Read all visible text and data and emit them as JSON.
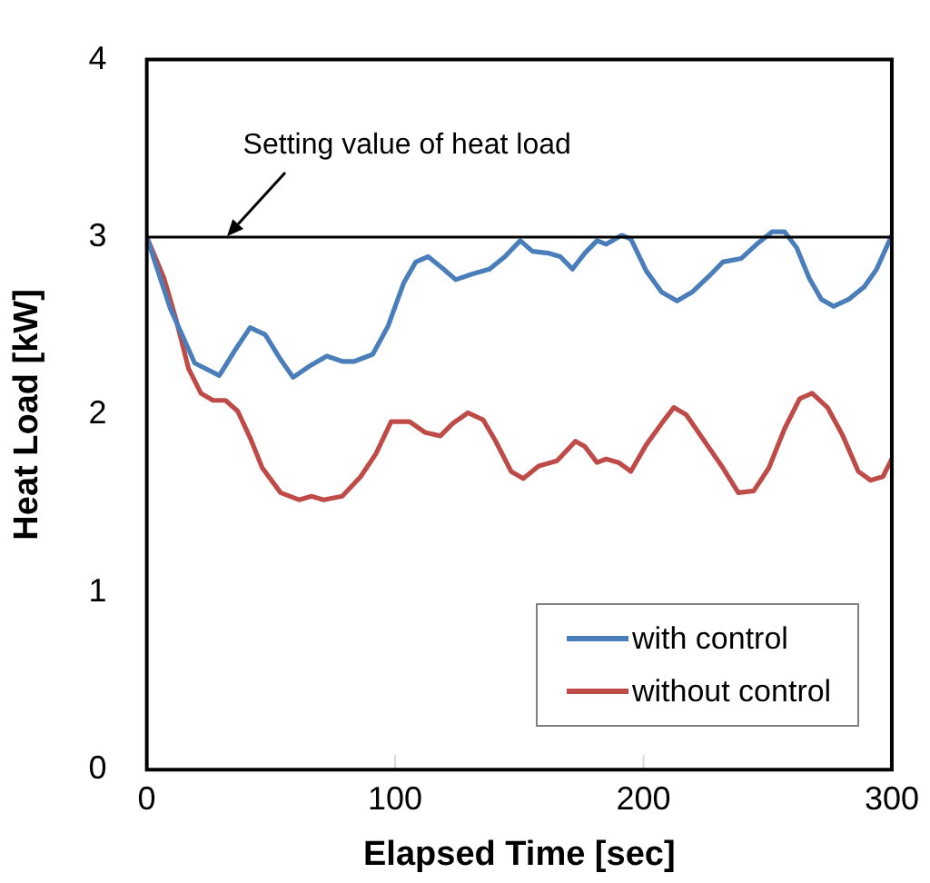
{
  "chart_data": {
    "type": "line",
    "xlabel": "Elapsed Time [sec]",
    "ylabel": "Heat Load [kW]",
    "xlim": [
      0,
      300
    ],
    "xticks": [
      0,
      100,
      200,
      300
    ],
    "ylim": [
      0,
      4
    ],
    "yticks": [
      0,
      1,
      2,
      3,
      4
    ],
    "grid": false,
    "legend": "bottom right",
    "marker": "none",
    "line_style": "solid",
    "ref_lines": [
      {
        "axis": "y",
        "value": 3,
        "label": "Setting value of heat load",
        "color": "#000000"
      }
    ],
    "series": [
      {
        "name": "with control",
        "color": "#4a7ebb",
        "x": [
          0,
          9.4,
          19.3,
          29.2,
          35.4,
          41.6,
          47.7,
          53.9,
          58.9,
          66.3,
          72.5,
          78.7,
          83.6,
          91,
          97.2,
          103.4,
          108.3,
          113.3,
          119.5,
          124.4,
          130.6,
          138,
          144.2,
          150.4,
          155.3,
          161.5,
          166.5,
          171.4,
          176.4,
          181.3,
          185,
          191.2,
          194.9,
          201.1,
          207.3,
          213.5,
          219.6,
          227.1,
          232,
          239.4,
          245.6,
          251.8,
          256.8,
          261.7,
          266.7,
          271.6,
          276.6,
          282.7,
          288.9,
          293.9,
          300
        ],
        "values": [
          3.0,
          2.6,
          2.29,
          2.22,
          2.36,
          2.49,
          2.45,
          2.31,
          2.21,
          2.28,
          2.33,
          2.3,
          2.3,
          2.34,
          2.5,
          2.74,
          2.86,
          2.89,
          2.82,
          2.76,
          2.79,
          2.82,
          2.89,
          2.98,
          2.92,
          2.91,
          2.89,
          2.82,
          2.91,
          2.98,
          2.96,
          3.01,
          2.99,
          2.81,
          2.69,
          2.64,
          2.69,
          2.79,
          2.86,
          2.88,
          2.96,
          3.03,
          3.03,
          2.94,
          2.77,
          2.65,
          2.61,
          2.65,
          2.72,
          2.82,
          3.01
        ]
      },
      {
        "name": "without control",
        "color": "#be4b48",
        "x": [
          0,
          6.9,
          11.9,
          16.8,
          21.8,
          26.7,
          31.7,
          36.6,
          41.6,
          46.5,
          53.9,
          61.3,
          66.3,
          71.2,
          78.7,
          86.1,
          92.3,
          98.4,
          105.8,
          112,
          118.2,
          123.2,
          129.3,
          135.5,
          140.5,
          146.7,
          151.6,
          157.8,
          165.2,
          172.6,
          176.4,
          181.3,
          185,
          190,
          194.9,
          201.1,
          207.3,
          212.2,
          217.2,
          224.6,
          232,
          238.2,
          244.4,
          250.5,
          256.8,
          262.9,
          267.9,
          274.1,
          280.3,
          286.5,
          291.4,
          296.4,
          300
        ],
        "values": [
          3.0,
          2.77,
          2.53,
          2.26,
          2.12,
          2.08,
          2.08,
          2.02,
          1.87,
          1.7,
          1.56,
          1.52,
          1.54,
          1.52,
          1.54,
          1.65,
          1.78,
          1.96,
          1.96,
          1.9,
          1.88,
          1.95,
          2.01,
          1.97,
          1.85,
          1.68,
          1.64,
          1.71,
          1.74,
          1.85,
          1.82,
          1.73,
          1.75,
          1.73,
          1.68,
          1.83,
          1.95,
          2.04,
          2.0,
          1.85,
          1.7,
          1.56,
          1.57,
          1.7,
          1.92,
          2.09,
          2.12,
          2.04,
          1.88,
          1.68,
          1.63,
          1.65,
          1.75
        ]
      }
    ]
  }
}
